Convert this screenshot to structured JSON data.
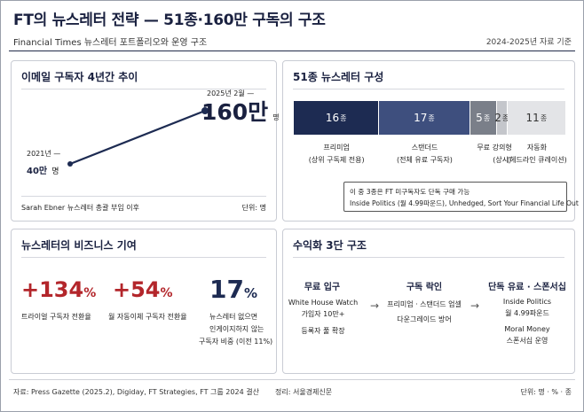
{
  "header": {
    "title": "FT의 뉴스레터 전략 — 51종·160만 구독의 구조",
    "subtitle": "Financial Times 뉴스레터 포트폴리오와 운영 구조",
    "basis": "2024-2025년 자료 기준"
  },
  "growth_panel": {
    "heading": "이메일 구독자 4년간 추이",
    "start_label_top": "2021년 —",
    "start_value": "40만",
    "start_unit": "명",
    "end_label_top": "2025년 2월 —",
    "end_value": "160만",
    "end_unit": "명",
    "source_note": "Sarah Ebner 뉴스레터 총괄 부임 이후",
    "unit_note": "단위: 명"
  },
  "composition_panel": {
    "heading": "51종 뉴스레터 구성",
    "segments": [
      {
        "count": "16",
        "unit": "종",
        "label": "프리미엄",
        "sub": "(상위 구독제 전용)",
        "color": "#1d2b52",
        "text_color": "#ffffff"
      },
      {
        "count": "17",
        "unit": "종",
        "label": "스탠더드",
        "sub": "(전체 유료 구독자)",
        "color": "#3e4f7e",
        "text_color": "#ffffff"
      },
      {
        "count": "5",
        "unit": "종",
        "label": "무료",
        "sub": "",
        "color": "#7a7f89",
        "text_color": "#ffffff"
      },
      {
        "count": "2",
        "unit": "종",
        "label": "강의형",
        "sub": "(상시)",
        "color": "#c4c6cb",
        "text_color": "#333333"
      },
      {
        "count": "11",
        "unit": "종",
        "label": "자동화",
        "sub": "(헤드라인 큐레이션)",
        "color": "#e3e4e7",
        "text_color": "#333333"
      }
    ],
    "note_line1": "이 중 3종은 FT 미구독자도 단독 구매 가능",
    "note_line2": "Inside Politics (월 4.99파운드), Unhedged, Sort Your Financial Life Out"
  },
  "contribution_panel": {
    "heading": "뉴스레터의 비즈니스 기여",
    "stats": [
      {
        "value": "+134",
        "suffix": "%",
        "desc1": "트라이얼 구독자 전환율",
        "desc2": "",
        "desc3": "",
        "color": "#b3262b"
      },
      {
        "value": "+54",
        "suffix": "%",
        "desc1": "월 자동이체 구독자 전환율",
        "desc2": "",
        "desc3": "",
        "color": "#b3262b"
      },
      {
        "value": "17",
        "suffix": "%",
        "desc1": "뉴스레터 없으면",
        "desc2": "인게이지하지 않는",
        "desc3": "구독자 비중 (이전 11%)",
        "color": "#1d2b52"
      }
    ]
  },
  "monetization_panel": {
    "heading": "수익화 3단 구조",
    "stages": [
      {
        "title": "무료 입구",
        "line1": "White House Watch",
        "line2": "가입자 10만+",
        "line3": "등록자 풀 확장"
      },
      {
        "title": "구독 락인",
        "line1": "프리미엄 · 스탠더드 업셀",
        "line2": "다운그레이드 방어",
        "line3": ""
      },
      {
        "title": "단독 유료 · 스폰서십",
        "line1": "Inside Politics",
        "line2": "월 4.99파운드",
        "line3": "Moral Money",
        "line4": "스폰서십 운영"
      }
    ],
    "arrow": "→"
  },
  "footer": {
    "source": "자료: Press Gazette (2025.2), Digiday, FT Strategies, FT 그룹 2024 결산",
    "editor": "정리: 서울경제신문",
    "units": "단위: 명 · % · 종"
  },
  "chart_data": [
    {
      "type": "line",
      "title": "이메일 구독자 4년간 추이",
      "x": [
        "2021년",
        "2025년 2월"
      ],
      "y": [
        400000,
        1600000
      ],
      "xlabel": "",
      "ylabel": "",
      "unit": "단위: 명"
    },
    {
      "type": "bar",
      "title": "51종 뉴스레터 구성",
      "categories": [
        "프리미엄",
        "스탠더드",
        "무료",
        "강의형",
        "자동화"
      ],
      "values": [
        16,
        17,
        5,
        2,
        11
      ],
      "stacked": true,
      "orientation": "horizontal"
    }
  ]
}
